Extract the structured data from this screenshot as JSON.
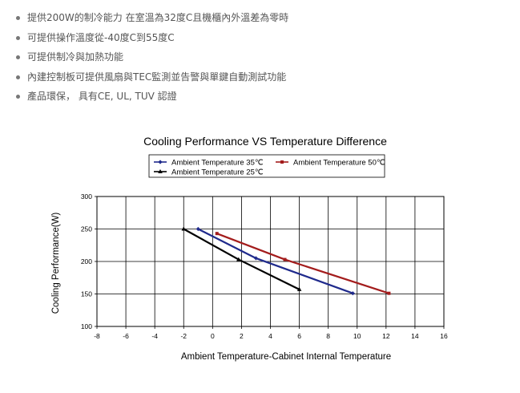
{
  "features": [
    "提供200W的制冷能力 在室溫為32度C且機櫃內外溫差為零時",
    "可提供操作溫度從-40度C到55度C",
    "可提供制冷與加熱功能",
    "內建控制板可提供風扇與TEC監測並告警與單鍵自動測試功能",
    "產品環保， 具有CE, UL, TUV 認證"
  ],
  "chart_data": {
    "type": "line",
    "title": "Cooling Performance VS Temperature Difference",
    "xlabel": "Ambient Temperature-Cabinet Internal Temperature",
    "ylabel": "Cooling Performance(W)",
    "xlim": [
      -8,
      16
    ],
    "ylim": [
      100,
      300
    ],
    "xticks": [
      -8,
      -6,
      -4,
      -2,
      0,
      2,
      4,
      6,
      8,
      10,
      12,
      14,
      16
    ],
    "yticks": [
      100,
      150,
      200,
      250,
      300
    ],
    "grid": true,
    "legend_position": "top",
    "series": [
      {
        "name": "Ambient Temperature 35℃",
        "color": "#1f2a8c",
        "marker": "diamond",
        "x": [
          -1,
          3,
          9.7
        ],
        "y": [
          250,
          205,
          151
        ]
      },
      {
        "name": "Ambient Temperature 50℃",
        "color": "#a31c1c",
        "marker": "square",
        "x": [
          0.3,
          5,
          12.2
        ],
        "y": [
          243,
          203,
          151
        ]
      },
      {
        "name": "Ambient Temperature 25℃",
        "color": "#000000",
        "marker": "triangle",
        "x": [
          -2,
          1.8,
          6
        ],
        "y": [
          250,
          203,
          157
        ]
      }
    ]
  }
}
